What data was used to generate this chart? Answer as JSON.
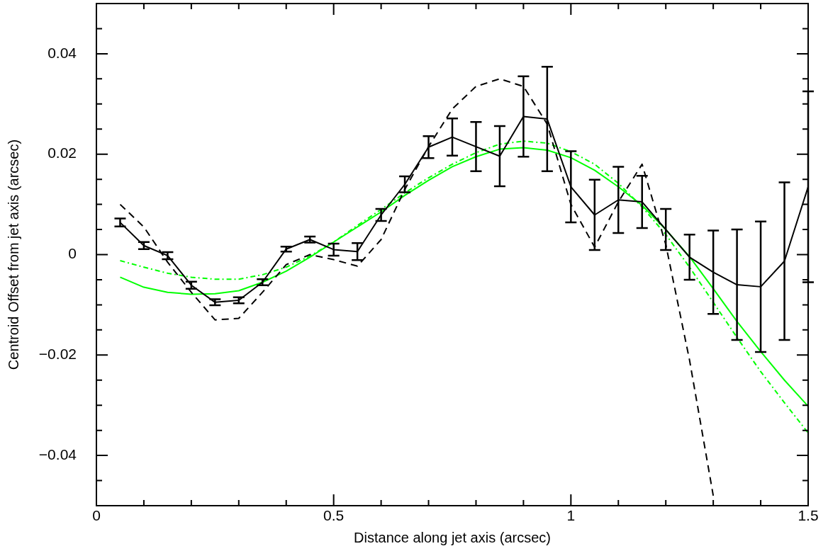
{
  "chart_data": {
    "type": "line",
    "xlabel": "Distance along jet axis (arcsec)",
    "ylabel": "Centroid Offset from jet axis (arcsec)",
    "x": [
      0.05,
      0.1,
      0.15,
      0.2,
      0.25,
      0.3,
      0.35,
      0.4,
      0.45,
      0.5,
      0.55,
      0.6,
      0.65,
      0.7,
      0.75,
      0.8,
      0.85,
      0.9,
      0.95,
      1.0,
      1.05,
      1.1,
      1.15,
      1.2,
      1.25,
      1.3,
      1.35,
      1.4,
      1.45,
      1.5
    ],
    "xlim": [
      0,
      1.5
    ],
    "ylim": [
      -0.05,
      0.05
    ],
    "xticks": [
      0,
      {
        "value": 0.1,
        "label": null
      },
      {
        "value": 0.2,
        "label": null
      },
      {
        "value": 0.3,
        "label": null
      },
      {
        "value": 0.4,
        "label": null
      },
      0.5,
      {
        "value": 0.6,
        "label": null
      },
      {
        "value": 0.7,
        "label": null
      },
      {
        "value": 0.8,
        "label": null
      },
      {
        "value": 0.9,
        "label": null
      },
      1,
      {
        "value": 1.1,
        "label": null
      },
      {
        "value": 1.2,
        "label": null
      },
      {
        "value": 1.3,
        "label": null
      },
      {
        "value": 1.4,
        "label": null
      },
      1.5
    ],
    "yticks": [
      {
        "value": -0.05,
        "label": null
      },
      {
        "value": -0.045,
        "label": null
      },
      {
        "value": -0.04,
        "label": "−0.04"
      },
      {
        "value": -0.035,
        "label": null
      },
      {
        "value": -0.03,
        "label": null
      },
      {
        "value": -0.025,
        "label": null
      },
      {
        "value": -0.02,
        "label": "−0.02"
      },
      {
        "value": -0.015,
        "label": null
      },
      {
        "value": -0.01,
        "label": null
      },
      {
        "value": -0.005,
        "label": null
      },
      0,
      {
        "value": 0.005,
        "label": null
      },
      {
        "value": 0.01,
        "label": null
      },
      {
        "value": 0.015,
        "label": null
      },
      0.02,
      {
        "value": 0.025,
        "label": null
      },
      {
        "value": 0.03,
        "label": null
      },
      {
        "value": 0.035,
        "label": null
      },
      0.04,
      {
        "value": 0.045,
        "label": null
      },
      {
        "value": 0.05,
        "label": null
      }
    ],
    "grid": false,
    "legend": false,
    "marker": "none",
    "series": [
      {
        "color": "#000000",
        "line_style": "solid",
        "values": [
          0.0064,
          0.0018,
          -0.0002,
          -0.0061,
          -0.0095,
          -0.0091,
          -0.0055,
          0.0011,
          0.003,
          0.001,
          0.0006,
          0.0079,
          0.014,
          0.0214,
          0.0234,
          0.0215,
          0.0196,
          0.0275,
          0.027,
          0.0135,
          0.0079,
          0.0109,
          0.0105,
          0.005,
          -0.0005,
          -0.0035,
          -0.006,
          -0.0064,
          -0.0013,
          0.0135
        ],
        "errors": [
          0.0008,
          0.0007,
          0.0007,
          0.0007,
          0.0006,
          0.0006,
          0.0006,
          0.0005,
          0.0006,
          0.0012,
          0.0017,
          0.0012,
          0.0016,
          0.0022,
          0.0037,
          0.0049,
          0.006,
          0.008,
          0.0104,
          0.0071,
          0.007,
          0.0066,
          0.0052,
          0.0041,
          0.0045,
          0.0083,
          0.011,
          0.013,
          0.0157,
          0.019
        ]
      },
      {
        "color": "#000000",
        "line_style": "dashed",
        "values": [
          0.01,
          0.0055,
          -0.0015,
          -0.0075,
          -0.013,
          -0.0127,
          -0.0075,
          -0.002,
          0.0,
          -0.001,
          -0.0023,
          0.003,
          0.013,
          0.0215,
          0.029,
          0.0335,
          0.035,
          0.0335,
          0.026,
          0.01,
          0.0015,
          0.0105,
          0.018,
          0.002,
          -0.021,
          -0.048,
          null,
          null,
          null,
          null
        ]
      },
      {
        "color": "#00ff00",
        "line_style": "solid",
        "values": [
          -0.0045,
          -0.0065,
          -0.0075,
          -0.0079,
          -0.0078,
          -0.0072,
          -0.0055,
          -0.0033,
          -0.0005,
          0.0025,
          0.0055,
          0.0085,
          0.0118,
          0.0148,
          0.0175,
          0.0195,
          0.021,
          0.0213,
          0.0208,
          0.0193,
          0.0168,
          0.0135,
          0.0098,
          0.005,
          -0.0004,
          -0.0068,
          -0.0133,
          -0.0193,
          -0.025,
          -0.0302
        ]
      },
      {
        "color": "#00ff00",
        "line_style": "dotted",
        "values": [
          -0.0012,
          -0.0025,
          -0.0037,
          -0.0045,
          -0.0049,
          -0.0049,
          -0.004,
          -0.0025,
          -0.0003,
          0.0025,
          0.0058,
          0.009,
          0.0123,
          0.0153,
          0.018,
          0.0203,
          0.022,
          0.0226,
          0.0222,
          0.0205,
          0.018,
          0.0142,
          0.0095,
          0.004,
          -0.0025,
          -0.0095,
          -0.0165,
          -0.0233,
          -0.0295,
          -0.0355
        ]
      }
    ]
  }
}
